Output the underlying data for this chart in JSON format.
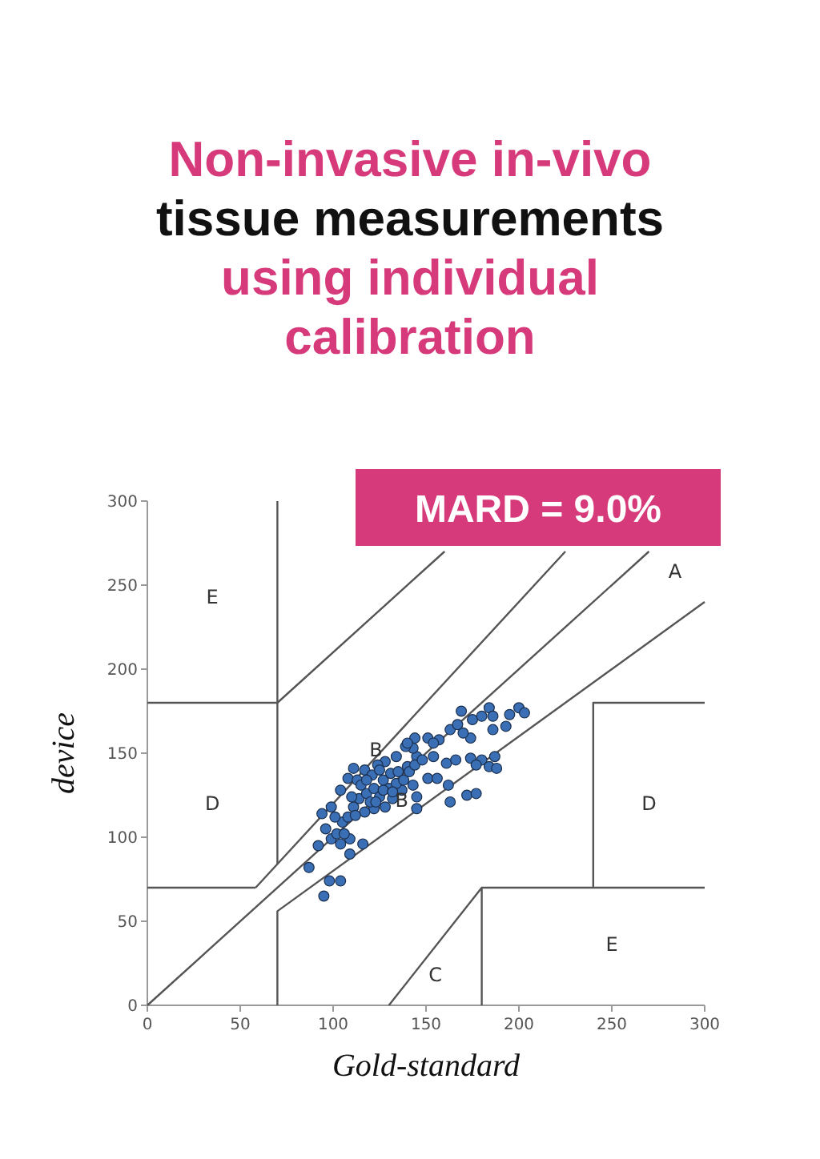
{
  "chart_data": {
    "type": "scatter",
    "title": "Non-invasive in-vivo tissue measurements using individual calibration",
    "xlabel": "Gold-standard",
    "ylabel": "device",
    "xlim": [
      0,
      300
    ],
    "ylim": [
      0,
      300
    ],
    "xticks": [
      0,
      50,
      100,
      150,
      200,
      250,
      300
    ],
    "yticks": [
      0,
      50,
      100,
      150,
      200,
      250,
      300
    ],
    "grid": false,
    "annotations": [
      "MARD = 9.0%",
      "A",
      "E",
      "D",
      "D",
      "E",
      "C",
      {
        "text": "B",
        "x": 123,
        "y": 152
      },
      {
        "text": "B",
        "x": 137,
        "y": 122
      }
    ],
    "series": [
      {
        "type": "line",
        "color": "#555555",
        "marker": "none",
        "x": [
          0,
          270
        ],
        "values": [
          0,
          270
        ]
      },
      {
        "type": "line",
        "color": "#555555",
        "marker": "none",
        "x": [
          58.3,
          225
        ],
        "values": [
          70,
          270
        ]
      },
      {
        "type": "line",
        "color": "#555555",
        "marker": "none",
        "x": [
          0,
          58.3
        ],
        "values": [
          70,
          70
        ]
      },
      {
        "type": "line",
        "color": "#555555",
        "marker": "none",
        "x": [
          70,
          70,
          300
        ],
        "values": [
          0,
          56,
          240
        ]
      },
      {
        "type": "line",
        "color": "#555555",
        "marker": "none",
        "x": [
          70,
          70
        ],
        "values": [
          84,
          300
        ]
      },
      {
        "type": "line",
        "color": "#555555",
        "marker": "none",
        "x": [
          0,
          70,
          160
        ],
        "values": [
          180,
          180,
          270
        ]
      },
      {
        "type": "line",
        "color": "#555555",
        "marker": "none",
        "x": [
          130,
          180,
          180
        ],
        "values": [
          0,
          70,
          0
        ]
      },
      {
        "type": "line",
        "color": "#555555",
        "marker": "none",
        "x": [
          180,
          300
        ],
        "values": [
          70,
          70
        ]
      },
      {
        "type": "line",
        "color": "#555555",
        "marker": "none",
        "x": [
          240,
          240,
          300
        ],
        "values": [
          70,
          180,
          180
        ]
      },
      {
        "color": "#3b6fb5",
        "marker": "circle",
        "x": [
          95,
          98,
          104,
          87,
          92,
          109,
          116,
          94,
          163,
          172,
          177,
          162,
          151,
          156,
          145,
          161,
          166,
          174,
          180,
          184,
          188,
          187,
          177,
          163,
          167,
          169,
          175,
          184,
          186,
          195,
          200,
          203,
          193,
          186,
          180,
          174,
          170,
          157,
          151,
          154,
          145,
          143,
          139,
          134,
          128,
          124,
          117,
          111,
          108,
          113,
          104,
          99,
          96,
          99,
          102,
          105,
          108,
          101,
          111,
          114,
          118,
          122,
          127,
          131,
          135,
          140,
          143,
          145,
          137,
          132,
          128,
          122,
          117,
          112,
          109,
          104,
          106,
          120,
          125,
          130,
          134,
          138,
          141,
          144,
          148,
          154,
          121,
          115,
          118,
          127,
          132,
          123,
          110,
          125,
          144,
          140
        ],
        "values": [
          65,
          74,
          74,
          82,
          95,
          90,
          96,
          114,
          121,
          125,
          126,
          131,
          135,
          135,
          117,
          144,
          146,
          147,
          146,
          142,
          141,
          148,
          143,
          164,
          167,
          175,
          170,
          177,
          172,
          173,
          177,
          174,
          166,
          164,
          172,
          159,
          162,
          158,
          159,
          156,
          148,
          153,
          154,
          148,
          145,
          143,
          140,
          141,
          135,
          134,
          128,
          118,
          105,
          99,
          102,
          109,
          112,
          112,
          118,
          123,
          126,
          129,
          134,
          138,
          139,
          142,
          131,
          124,
          128,
          123,
          118,
          117,
          115,
          113,
          99,
          96,
          102,
          121,
          124,
          129,
          132,
          134,
          139,
          143,
          146,
          148,
          137,
          131,
          134,
          128,
          127,
          121,
          124,
          140,
          159,
          156
        ]
      }
    ]
  }
}
